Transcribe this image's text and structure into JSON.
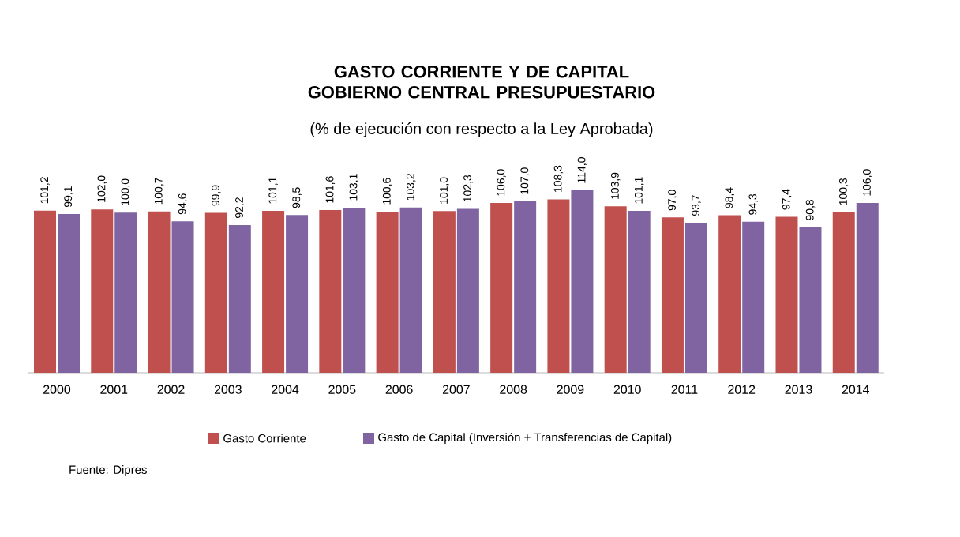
{
  "chart_data": {
    "type": "bar",
    "title": "GASTO CORRIENTE Y DE CAPITAL GOBIERNO CENTRAL PRESUPUESTARIO",
    "subtitle": "(% de ejecución con respecto a la Ley Aprobada)",
    "categories": [
      "2000",
      "2001",
      "2002",
      "2003",
      "2004",
      "2005",
      "2006",
      "2007",
      "2008",
      "2009",
      "2010",
      "2011",
      "2012",
      "2013",
      "2014"
    ],
    "series": [
      {
        "name": "Gasto Corriente",
        "color": "#c0504d",
        "values": [
          101.2,
          102.0,
          100.7,
          99.9,
          101.1,
          101.6,
          100.6,
          101.0,
          106.0,
          108.3,
          103.9,
          97.0,
          98.4,
          97.4,
          100.3
        ],
        "value_labels": [
          "101,2",
          "102,0",
          "100,7",
          "99,9",
          "101,1",
          "101,6",
          "100,6",
          "101,0",
          "106,0",
          "108,3",
          "103,9",
          "97,0",
          "98,4",
          "97,4",
          "100,3"
        ]
      },
      {
        "name": "Gasto de Capital (Inversión + Transferencias de Capital)",
        "color": "#8064a2",
        "values": [
          99.1,
          100.0,
          94.6,
          92.2,
          98.5,
          103.1,
          103.2,
          102.3,
          107.0,
          114.0,
          101.1,
          93.7,
          94.3,
          90.8,
          106.0
        ],
        "value_labels": [
          "99,1",
          "100,0",
          "94,6",
          "92,2",
          "98,5",
          "103,1",
          "103,2",
          "102,3",
          "107,0",
          "114,0",
          "101,1",
          "93,7",
          "94,3",
          "90,8",
          "106,0"
        ]
      }
    ],
    "legend": "bottom",
    "annotations": [
      "Fuente: Dipres"
    ]
  }
}
